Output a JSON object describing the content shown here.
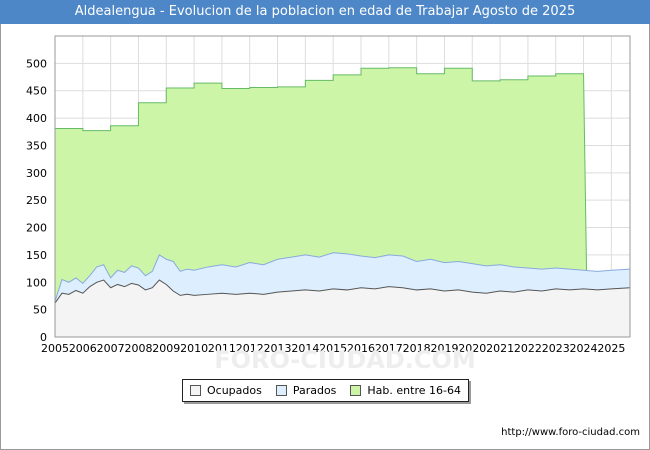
{
  "title": "Aldealengua - Evolucion de la poblacion en edad de Trabajar Agosto de 2025",
  "source": "http://www.foro-ciudad.com",
  "watermark": "FORO-CIUDAD.COM",
  "chart_data": {
    "type": "area",
    "title": "Aldealengua - Evolucion de la poblacion en edad de Trabajar Agosto de 2025",
    "xlabel": "",
    "ylabel": "",
    "xlim": [
      2005,
      2025.67
    ],
    "ylim": [
      0,
      550
    ],
    "yticks": [
      0,
      50,
      100,
      150,
      200,
      250,
      300,
      350,
      400,
      450,
      500
    ],
    "xticks": [
      2005,
      2006,
      2007,
      2008,
      2009,
      2010,
      2011,
      2012,
      2013,
      2014,
      2015,
      2016,
      2017,
      2018,
      2019,
      2020,
      2021,
      2022,
      2023,
      2024,
      2025
    ],
    "grid": true,
    "legend_position": "bottom",
    "series": [
      {
        "name": "Hab. entre 16-64",
        "color": "#ccf5a7",
        "line_color": "#66bb66",
        "step": true,
        "x": [
          2005,
          2006,
          2007,
          2008,
          2009,
          2010,
          2011,
          2012,
          2013,
          2014,
          2015,
          2016,
          2017,
          2018,
          2019,
          2020,
          2021,
          2022,
          2023,
          2024
        ],
        "values": [
          381,
          377,
          386,
          428,
          455,
          464,
          454,
          456,
          457,
          469,
          479,
          491,
          492,
          481,
          491,
          468,
          470,
          477,
          481,
          0
        ]
      },
      {
        "name": "Parados",
        "color": "#ddeeff",
        "line_color": "#88aadd",
        "x": [
          2005.0,
          2005.25,
          2005.5,
          2005.75,
          2006.0,
          2006.25,
          2006.5,
          2006.75,
          2007.0,
          2007.25,
          2007.5,
          2007.75,
          2008.0,
          2008.25,
          2008.5,
          2008.75,
          2009.0,
          2009.25,
          2009.5,
          2009.75,
          2010.0,
          2010.5,
          2011.0,
          2011.5,
          2012.0,
          2012.5,
          2013.0,
          2013.5,
          2014.0,
          2014.5,
          2015.0,
          2015.5,
          2016.0,
          2016.5,
          2017.0,
          2017.5,
          2018.0,
          2018.5,
          2019.0,
          2019.5,
          2020.0,
          2020.5,
          2021.0,
          2021.5,
          2022.0,
          2022.5,
          2023.0,
          2023.5,
          2024.0,
          2024.5,
          2025.0,
          2025.67
        ],
        "values": [
          65,
          105,
          100,
          108,
          98,
          112,
          128,
          132,
          108,
          122,
          118,
          130,
          126,
          112,
          120,
          150,
          142,
          138,
          120,
          124,
          122,
          128,
          132,
          128,
          136,
          132,
          142,
          146,
          150,
          146,
          154,
          152,
          148,
          145,
          150,
          148,
          138,
          142,
          136,
          138,
          134,
          130,
          132,
          128,
          126,
          124,
          126,
          124,
          122,
          120,
          122,
          124
        ]
      },
      {
        "name": "Ocupados",
        "color": "#f4f4f4",
        "line_color": "#555555",
        "x": [
          2005.0,
          2005.25,
          2005.5,
          2005.75,
          2006.0,
          2006.25,
          2006.5,
          2006.75,
          2007.0,
          2007.25,
          2007.5,
          2007.75,
          2008.0,
          2008.25,
          2008.5,
          2008.75,
          2009.0,
          2009.25,
          2009.5,
          2009.75,
          2010.0,
          2010.5,
          2011.0,
          2011.5,
          2012.0,
          2012.5,
          2013.0,
          2013.5,
          2014.0,
          2014.5,
          2015.0,
          2015.5,
          2016.0,
          2016.5,
          2017.0,
          2017.5,
          2018.0,
          2018.5,
          2019.0,
          2019.5,
          2020.0,
          2020.5,
          2021.0,
          2021.5,
          2022.0,
          2022.5,
          2023.0,
          2023.5,
          2024.0,
          2024.5,
          2025.0,
          2025.67
        ],
        "values": [
          62,
          80,
          78,
          85,
          80,
          92,
          100,
          104,
          90,
          96,
          92,
          98,
          95,
          86,
          90,
          104,
          96,
          84,
          76,
          78,
          76,
          78,
          80,
          78,
          80,
          78,
          82,
          84,
          86,
          84,
          88,
          86,
          90,
          88,
          92,
          90,
          86,
          88,
          84,
          86,
          82,
          80,
          84,
          82,
          86,
          84,
          88,
          86,
          88,
          86,
          88,
          90
        ]
      }
    ]
  }
}
